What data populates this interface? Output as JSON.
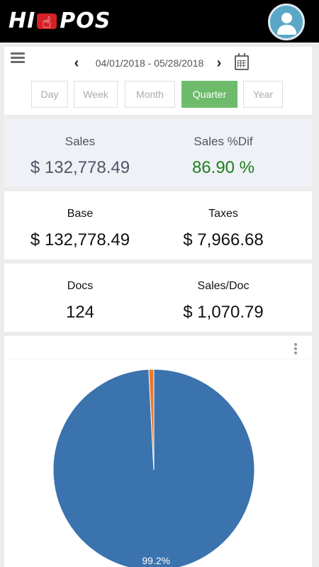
{
  "header": {
    "logo_text_left": "HI",
    "logo_text_right": "POS",
    "logo_mark": "hand-pointer-icon",
    "avatar_icon": "user-avatar-icon"
  },
  "filter": {
    "menu_icon": "hamburger-menu-icon",
    "prev_icon": "chevron-left-icon",
    "next_icon": "chevron-right-icon",
    "date_range": "04/01/2018 - 05/28/2018",
    "calendar_icon": "calendar-icon",
    "periods": [
      "Day",
      "Week",
      "Month",
      "Quarter",
      "Year"
    ],
    "selected_period": "Quarter",
    "active_color": "#6ebb6b"
  },
  "stats": {
    "sales_label": "Sales",
    "sales_value": "$ 132,778.49",
    "sales_dif_label": "Sales %Dif",
    "sales_dif_value": "86.90 %",
    "base_label": "Base",
    "base_value": "$ 132,778.49",
    "taxes_label": "Taxes",
    "taxes_value": "$ 7,966.68",
    "docs_label": "Docs",
    "docs_value": "124",
    "sales_doc_label": "Sales/Doc",
    "sales_doc_value": "$ 1,070.79"
  },
  "chart_data": {
    "type": "pie",
    "slices": [
      {
        "value": 99.2,
        "label": "99.2%",
        "color": "#3a73ad"
      },
      {
        "value": 0.8,
        "label": "",
        "color": "#e8782a"
      }
    ]
  }
}
